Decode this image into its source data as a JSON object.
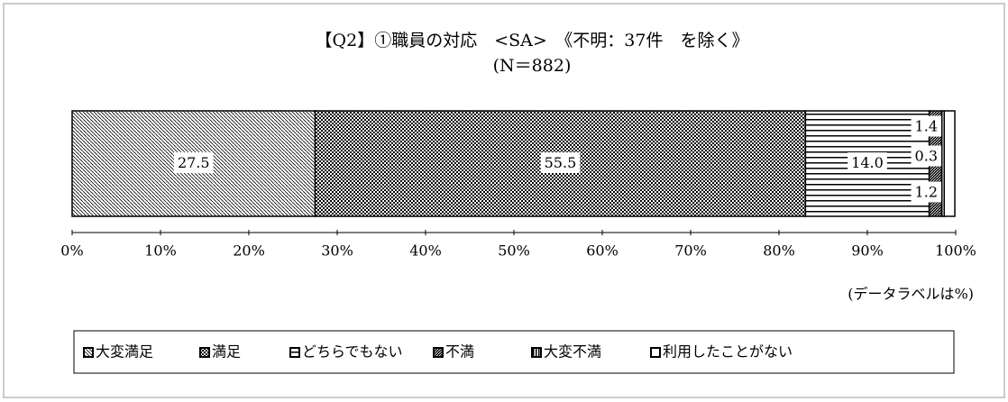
{
  "chart_data": {
    "type": "stacked-barh",
    "title": "【Q2】①職員の対応　<SA>　《不明：37件　を除く》",
    "subtitle": "(N＝882)",
    "annotation": "(データラベルは%)",
    "categories": [
      null
    ],
    "series": [
      {
        "name": "大変満足",
        "color": "#000000",
        "pattern": "diagonal",
        "values": [
          27.5
        ]
      },
      {
        "name": "満足",
        "color": "#000000",
        "pattern": "checker",
        "values": [
          55.5
        ]
      },
      {
        "name": "どちらでもない",
        "color": "#000000",
        "pattern": "horizontal",
        "values": [
          14.0
        ],
        "value_labels": [
          "14.0"
        ]
      },
      {
        "name": "不満",
        "color": "#000000",
        "pattern": "dense",
        "values": [
          1.4
        ]
      },
      {
        "name": "大変不満",
        "color": "#000000",
        "pattern": "vertical",
        "values": [
          0.3
        ]
      },
      {
        "name": "利用したことがない",
        "color": "#000000",
        "pattern": "none",
        "values": [
          1.2
        ]
      }
    ],
    "xlim": [
      0,
      100
    ],
    "xticks": [
      {
        "value": 0,
        "label": "0%"
      },
      {
        "value": 10,
        "label": "10%"
      },
      {
        "value": 20,
        "label": "20%"
      },
      {
        "value": 30,
        "label": "30%"
      },
      {
        "value": 40,
        "label": "40%"
      },
      {
        "value": 50,
        "label": "50%"
      },
      {
        "value": 60,
        "label": "60%"
      },
      {
        "value": 70,
        "label": "70%"
      },
      {
        "value": 80,
        "label": "80%"
      },
      {
        "value": 90,
        "label": "90%"
      },
      {
        "value": 100,
        "label": "100%"
      }
    ],
    "legend": "bottom"
  }
}
